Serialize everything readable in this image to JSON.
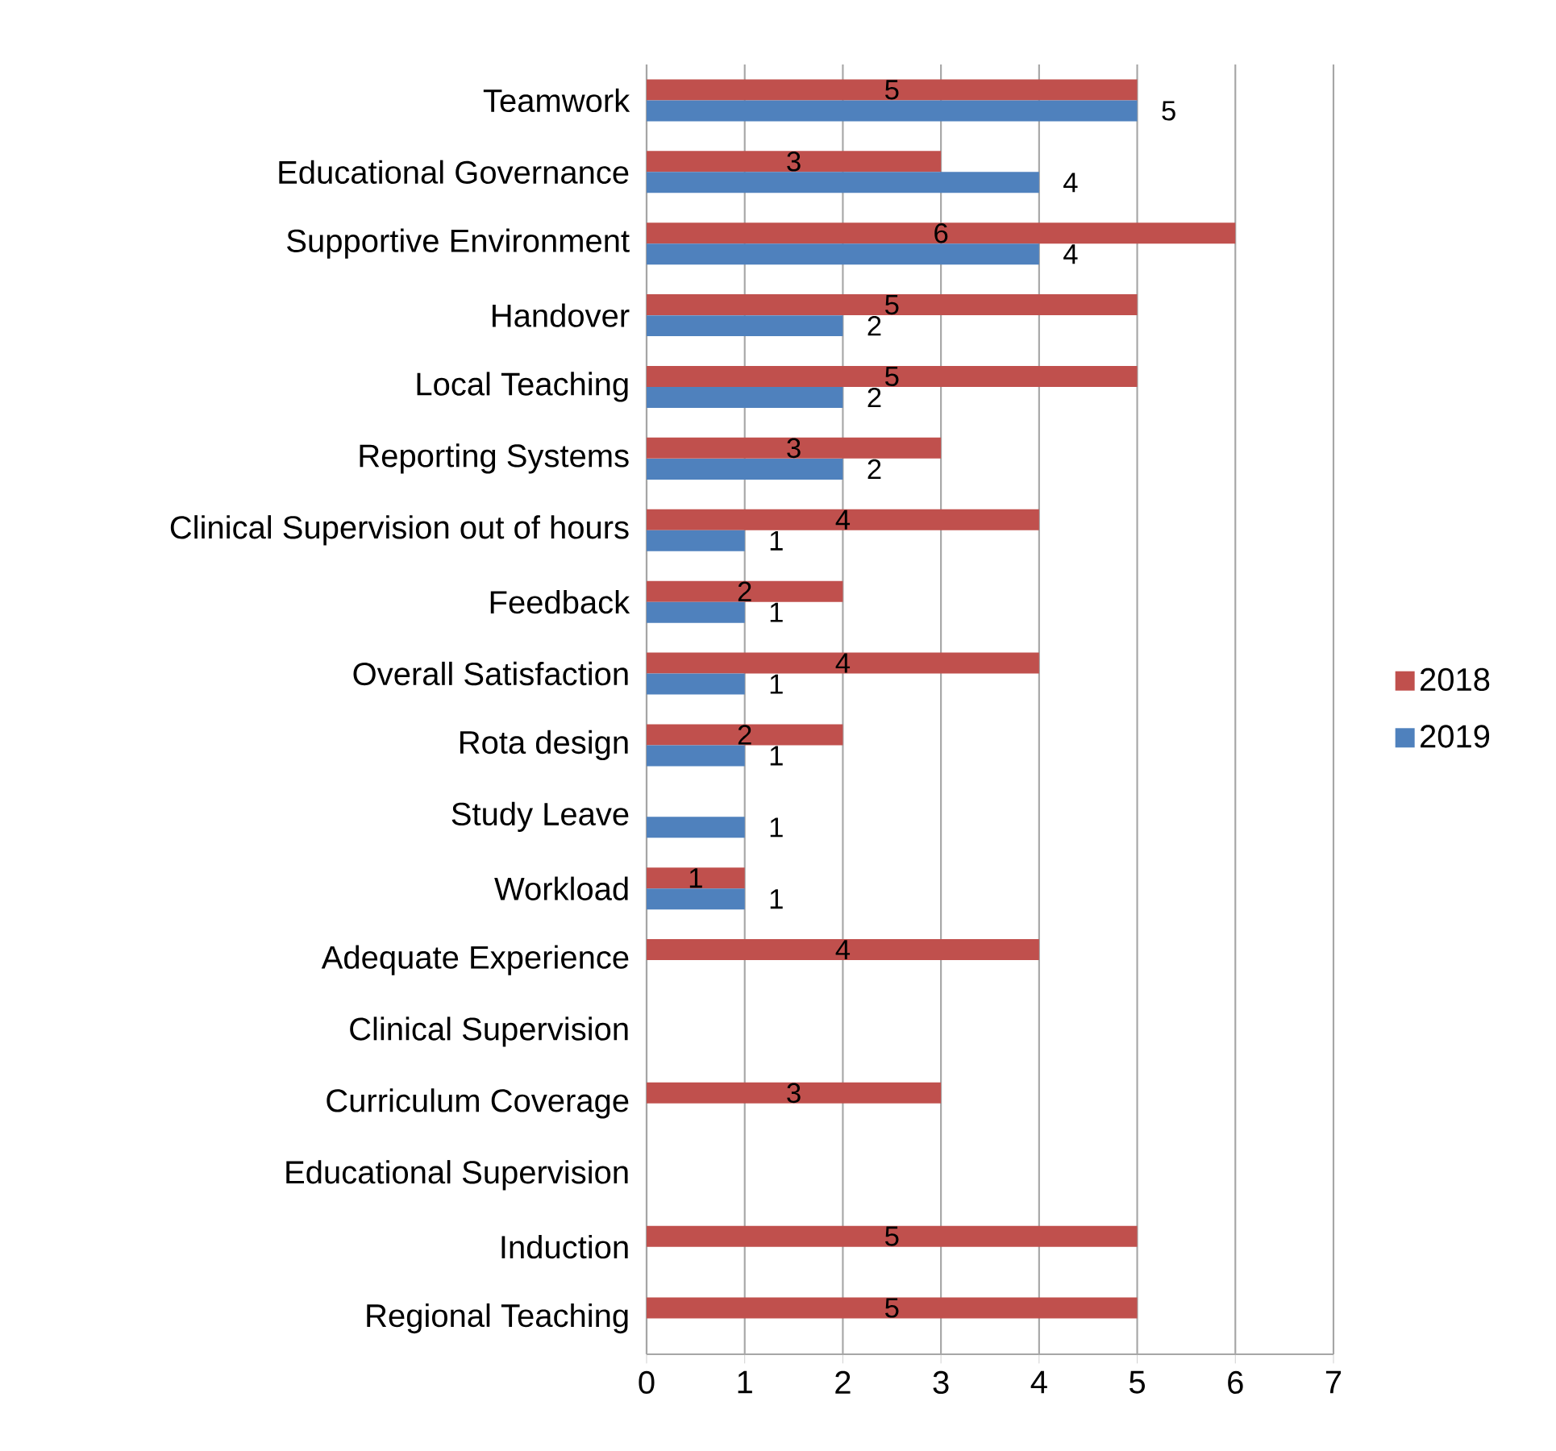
{
  "chart_data": {
    "type": "bar",
    "orientation": "horizontal",
    "categories": [
      "Teamwork",
      "Educational Governance",
      "Supportive Environment",
      "Handover",
      "Local Teaching",
      "Reporting Systems",
      "Clinical Supervision out of hours",
      "Feedback",
      "Overall Satisfaction",
      "Rota design",
      "Study Leave",
      "Workload",
      "Adequate Experience",
      "Clinical Supervision",
      "Curriculum Coverage",
      "Educational Supervision",
      "Induction",
      "Regional Teaching"
    ],
    "series": [
      {
        "name": "2018",
        "color": "#c0504d",
        "values": [
          5,
          3,
          6,
          5,
          5,
          3,
          4,
          2,
          4,
          2,
          null,
          1,
          4,
          null,
          3,
          null,
          5,
          5
        ]
      },
      {
        "name": "2019",
        "color": "#4f81bd",
        "values": [
          5,
          4,
          4,
          2,
          2,
          2,
          1,
          1,
          1,
          1,
          1,
          1,
          null,
          null,
          null,
          null,
          null,
          null
        ]
      }
    ],
    "xlim": [
      0,
      7
    ],
    "xticks": [
      0,
      1,
      2,
      3,
      4,
      5,
      6,
      7
    ],
    "grid": "x",
    "legend": "right",
    "data_labels": true
  }
}
